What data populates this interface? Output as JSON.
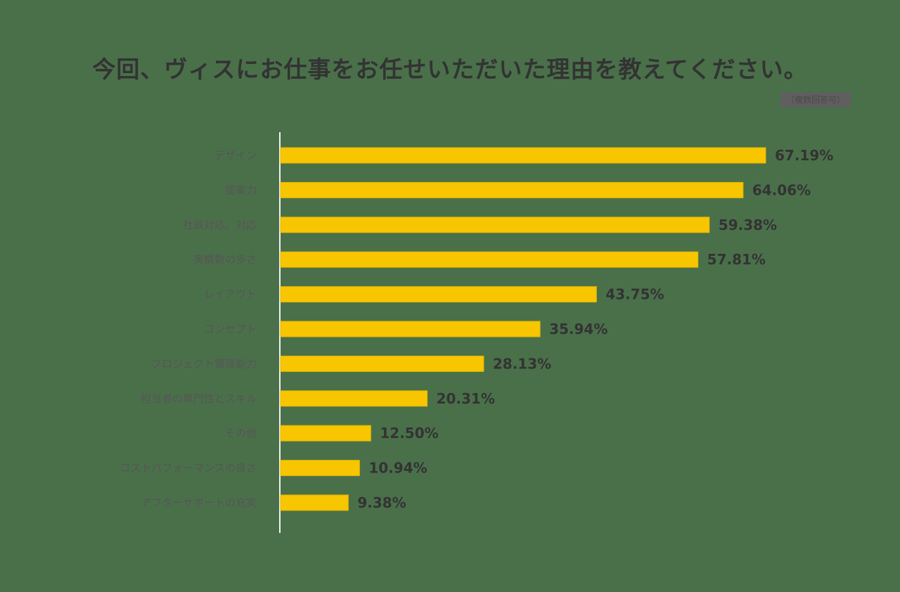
{
  "chart_data": {
    "type": "bar",
    "orientation": "horizontal",
    "title": "今回、ヴィスにお仕事をお任せいただいた理由を教えてください。",
    "note": "（複数回答可）",
    "categories": [
      "デザイン",
      "提案力",
      "社員対応、対応",
      "実績数の多さ",
      "レイアウト",
      "コンセプト",
      "プロジェクト管理能力",
      "担当者の専門性とスキル",
      "その他",
      "コストパフォーマンスの良さ",
      "アフターサポートの充実"
    ],
    "values": [
      67.19,
      64.06,
      59.38,
      57.81,
      43.75,
      35.94,
      28.13,
      20.31,
      12.5,
      10.94,
      9.38
    ],
    "value_labels": [
      "67.19%",
      "64.06%",
      "59.38%",
      "57.81%",
      "43.75%",
      "35.94%",
      "28.13%",
      "20.31%",
      "12.50%",
      "10.94%",
      "9.38%"
    ],
    "unit": "%",
    "xlim": [
      0,
      100
    ],
    "grid": false,
    "legend": "none",
    "colors": {
      "bar": "#f7c600",
      "bar_border": "#e2b400",
      "background": "#4a704a",
      "axis": "#f2f2f2",
      "value_text": "#333333",
      "label_text": "#565656"
    }
  }
}
